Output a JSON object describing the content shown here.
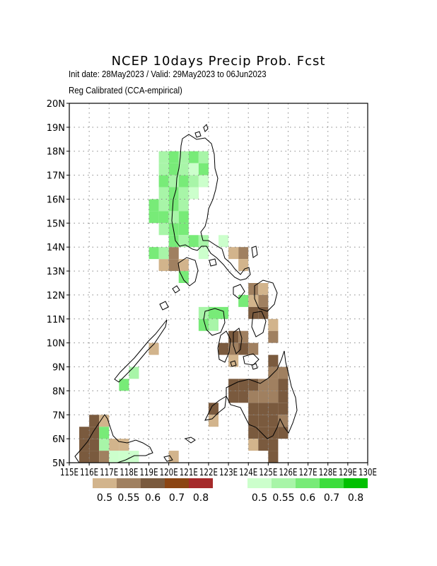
{
  "title": "NCEP 10days Precip Prob. Fcst",
  "subtitle_dates": "Init date: 28May2023 / Valid: 29May2023 to 06Jun2023",
  "subtitle_method": "Reg Calibrated (CCA-empirical)",
  "map_extent": {
    "lon": [
      115,
      130
    ],
    "lat": [
      5,
      20
    ]
  },
  "lat_labels": [
    "5N",
    "6N",
    "7N",
    "8N",
    "9N",
    "10N",
    "11N",
    "12N",
    "13N",
    "14N",
    "15N",
    "16N",
    "17N",
    "18N",
    "19N",
    "20N"
  ],
  "lon_labels": [
    "115E",
    "116E",
    "117E",
    "118E",
    "119E",
    "120E",
    "121E",
    "122E",
    "123E",
    "124E",
    "125E",
    "126E",
    "127E",
    "128E",
    "129E",
    "130E"
  ],
  "legend_dry": {
    "labels": [
      "0.5",
      "0.55",
      "0.6",
      "0.7",
      "0.8"
    ],
    "colors": [
      "#d2b48c",
      "#a08060",
      "#7a5a3e",
      "#8b4513",
      "#a52a2a"
    ]
  },
  "legend_wet": {
    "labels": [
      "0.5",
      "0.55",
      "0.6",
      "0.7",
      "0.8"
    ],
    "colors": [
      "#ccffcc",
      "#a8f5a8",
      "#78eb78",
      "#3ddd3d",
      "#00c000"
    ]
  },
  "grid_cells": {
    "wet": [
      {
        "lon": 119.75,
        "lat": 17.75,
        "p": 0.55
      },
      {
        "lon": 120.25,
        "lat": 17.75,
        "p": 0.6
      },
      {
        "lon": 120.75,
        "lat": 17.75,
        "p": 0.55
      },
      {
        "lon": 121.25,
        "lat": 17.75,
        "p": 0.6
      },
      {
        "lon": 121.75,
        "lat": 17.75,
        "p": 0.55
      },
      {
        "lon": 119.75,
        "lat": 17.25,
        "p": 0.55
      },
      {
        "lon": 120.25,
        "lat": 17.25,
        "p": 0.6
      },
      {
        "lon": 120.75,
        "lat": 17.25,
        "p": 0.55
      },
      {
        "lon": 121.25,
        "lat": 17.25,
        "p": 0.5
      },
      {
        "lon": 121.75,
        "lat": 17.25,
        "p": 0.6
      },
      {
        "lon": 119.75,
        "lat": 16.75,
        "p": 0.6
      },
      {
        "lon": 120.25,
        "lat": 16.75,
        "p": 0.55
      },
      {
        "lon": 120.75,
        "lat": 16.75,
        "p": 0.6
      },
      {
        "lon": 121.25,
        "lat": 16.75,
        "p": 0.55
      },
      {
        "lon": 121.75,
        "lat": 16.75,
        "p": 0.5
      },
      {
        "lon": 119.75,
        "lat": 16.25,
        "p": 0.55
      },
      {
        "lon": 120.25,
        "lat": 16.25,
        "p": 0.6
      },
      {
        "lon": 120.75,
        "lat": 16.25,
        "p": 0.55
      },
      {
        "lon": 121.25,
        "lat": 16.25,
        "p": 0.5
      },
      {
        "lon": 119.25,
        "lat": 15.75,
        "p": 0.6
      },
      {
        "lon": 119.75,
        "lat": 15.75,
        "p": 0.55
      },
      {
        "lon": 120.25,
        "lat": 15.75,
        "p": 0.6
      },
      {
        "lon": 120.75,
        "lat": 15.75,
        "p": 0.55
      },
      {
        "lon": 119.25,
        "lat": 15.25,
        "p": 0.6
      },
      {
        "lon": 119.75,
        "lat": 15.25,
        "p": 0.6
      },
      {
        "lon": 120.25,
        "lat": 15.25,
        "p": 0.55
      },
      {
        "lon": 120.75,
        "lat": 15.25,
        "p": 0.6
      },
      {
        "lon": 119.75,
        "lat": 14.75,
        "p": 0.55
      },
      {
        "lon": 120.25,
        "lat": 14.75,
        "p": 0.6
      },
      {
        "lon": 120.75,
        "lat": 14.75,
        "p": 0.6
      },
      {
        "lon": 120.25,
        "lat": 14.25,
        "p": 0.6
      },
      {
        "lon": 120.75,
        "lat": 14.25,
        "p": 0.55
      },
      {
        "lon": 121.25,
        "lat": 14.25,
        "p": 0.6
      },
      {
        "lon": 121.75,
        "lat": 14.25,
        "p": 0.55
      },
      {
        "lon": 122.75,
        "lat": 14.25,
        "p": 0.5
      },
      {
        "lon": 119.25,
        "lat": 13.75,
        "p": 0.6
      },
      {
        "lon": 119.75,
        "lat": 13.75,
        "p": 0.55
      },
      {
        "lon": 121.75,
        "lat": 13.75,
        "p": 0.5
      },
      {
        "lon": 120.75,
        "lat": 12.75,
        "p": 0.6
      },
      {
        "lon": 123.75,
        "lat": 11.75,
        "p": 0.6
      },
      {
        "lon": 121.75,
        "lat": 11.25,
        "p": 0.55
      },
      {
        "lon": 122.25,
        "lat": 11.25,
        "p": 0.6
      },
      {
        "lon": 122.75,
        "lat": 11.25,
        "p": 0.6
      },
      {
        "lon": 121.75,
        "lat": 10.75,
        "p": 0.6
      },
      {
        "lon": 122.25,
        "lat": 10.75,
        "p": 0.55
      },
      {
        "lon": 117.75,
        "lat": 8.25,
        "p": 0.6
      },
      {
        "lon": 118.25,
        "lat": 8.75,
        "p": 0.55
      },
      {
        "lon": 116.75,
        "lat": 6.25,
        "p": 0.6
      },
      {
        "lon": 116.75,
        "lat": 5.75,
        "p": 0.55
      },
      {
        "lon": 117.25,
        "lat": 5.25,
        "p": 0.5
      },
      {
        "lon": 117.75,
        "lat": 5.25,
        "p": 0.5
      },
      {
        "lon": 118.25,
        "lat": 5.25,
        "p": 0.5
      }
    ],
    "dry": [
      {
        "lon": 121.75,
        "lat": 16.75,
        "p": 0.5
      },
      {
        "lon": 121.25,
        "lat": 16.25,
        "p": 0.5
      },
      {
        "lon": 119.75,
        "lat": 13.25,
        "p": 0.5
      },
      {
        "lon": 120.25,
        "lat": 13.25,
        "p": 0.55
      },
      {
        "lon": 120.75,
        "lat": 13.25,
        "p": 0.5
      },
      {
        "lon": 120.25,
        "lat": 13.75,
        "p": 0.55
      },
      {
        "lon": 123.75,
        "lat": 13.75,
        "p": 0.55
      },
      {
        "lon": 123.25,
        "lat": 13.75,
        "p": 0.5
      },
      {
        "lon": 123.75,
        "lat": 13.25,
        "p": 0.5
      },
      {
        "lon": 124.25,
        "lat": 12.25,
        "p": 0.55
      },
      {
        "lon": 124.75,
        "lat": 12.25,
        "p": 0.5
      },
      {
        "lon": 124.25,
        "lat": 11.75,
        "p": 0.5
      },
      {
        "lon": 124.75,
        "lat": 11.75,
        "p": 0.55
      },
      {
        "lon": 124.25,
        "lat": 11.25,
        "p": 0.6
      },
      {
        "lon": 124.75,
        "lat": 11.25,
        "p": 0.6
      },
      {
        "lon": 125.25,
        "lat": 10.75,
        "p": 0.5
      },
      {
        "lon": 125.25,
        "lat": 10.25,
        "p": 0.55
      },
      {
        "lon": 123.25,
        "lat": 10.25,
        "p": 0.6
      },
      {
        "lon": 123.75,
        "lat": 10.25,
        "p": 0.55
      },
      {
        "lon": 122.75,
        "lat": 9.75,
        "p": 0.6
      },
      {
        "lon": 123.25,
        "lat": 9.75,
        "p": 0.55
      },
      {
        "lon": 123.75,
        "lat": 9.75,
        "p": 0.6
      },
      {
        "lon": 124.25,
        "lat": 9.75,
        "p": 0.55
      },
      {
        "lon": 123.25,
        "lat": 9.25,
        "p": 0.5
      },
      {
        "lon": 125.25,
        "lat": 9.25,
        "p": 0.6
      },
      {
        "lon": 125.25,
        "lat": 8.75,
        "p": 0.55
      },
      {
        "lon": 125.75,
        "lat": 8.75,
        "p": 0.55
      },
      {
        "lon": 123.25,
        "lat": 8.25,
        "p": 0.6
      },
      {
        "lon": 123.75,
        "lat": 8.25,
        "p": 0.6
      },
      {
        "lon": 124.25,
        "lat": 8.25,
        "p": 0.6
      },
      {
        "lon": 124.75,
        "lat": 8.25,
        "p": 0.55
      },
      {
        "lon": 125.25,
        "lat": 8.25,
        "p": 0.55
      },
      {
        "lon": 125.75,
        "lat": 8.25,
        "p": 0.6
      },
      {
        "lon": 122.25,
        "lat": 7.25,
        "p": 0.6
      },
      {
        "lon": 123.25,
        "lat": 7.75,
        "p": 0.6
      },
      {
        "lon": 123.75,
        "lat": 7.75,
        "p": 0.6
      },
      {
        "lon": 124.25,
        "lat": 7.75,
        "p": 0.55
      },
      {
        "lon": 124.75,
        "lat": 7.75,
        "p": 0.55
      },
      {
        "lon": 125.25,
        "lat": 7.75,
        "p": 0.55
      },
      {
        "lon": 125.75,
        "lat": 7.75,
        "p": 0.6
      },
      {
        "lon": 122.25,
        "lat": 6.75,
        "p": 0.5
      },
      {
        "lon": 124.25,
        "lat": 7.25,
        "p": 0.6
      },
      {
        "lon": 124.75,
        "lat": 7.25,
        "p": 0.6
      },
      {
        "lon": 125.25,
        "lat": 7.25,
        "p": 0.6
      },
      {
        "lon": 125.75,
        "lat": 7.25,
        "p": 0.6
      },
      {
        "lon": 124.25,
        "lat": 6.75,
        "p": 0.6
      },
      {
        "lon": 124.75,
        "lat": 6.75,
        "p": 0.6
      },
      {
        "lon": 125.25,
        "lat": 6.75,
        "p": 0.6
      },
      {
        "lon": 125.75,
        "lat": 6.75,
        "p": 0.55
      },
      {
        "lon": 124.25,
        "lat": 6.25,
        "p": 0.6
      },
      {
        "lon": 124.75,
        "lat": 6.25,
        "p": 0.6
      },
      {
        "lon": 125.25,
        "lat": 6.25,
        "p": 0.6
      },
      {
        "lon": 125.75,
        "lat": 6.25,
        "p": 0.6
      },
      {
        "lon": 124.25,
        "lat": 5.75,
        "p": 0.5
      },
      {
        "lon": 124.75,
        "lat": 5.75,
        "p": 0.6
      },
      {
        "lon": 125.25,
        "lat": 5.75,
        "p": 0.6
      },
      {
        "lon": 125.25,
        "lat": 5.25,
        "p": 0.6
      },
      {
        "lon": 116.25,
        "lat": 6.75,
        "p": 0.6
      },
      {
        "lon": 116.25,
        "lat": 6.25,
        "p": 0.6
      },
      {
        "lon": 115.75,
        "lat": 6.25,
        "p": 0.6
      },
      {
        "lon": 115.75,
        "lat": 5.75,
        "p": 0.6
      },
      {
        "lon": 116.25,
        "lat": 5.75,
        "p": 0.6
      },
      {
        "lon": 115.75,
        "lat": 5.25,
        "p": 0.6
      },
      {
        "lon": 116.25,
        "lat": 5.25,
        "p": 0.6
      },
      {
        "lon": 116.75,
        "lat": 5.25,
        "p": 0.55
      },
      {
        "lon": 116.75,
        "lat": 6.75,
        "p": 0.5
      },
      {
        "lon": 117.25,
        "lat": 5.75,
        "p": 0.5
      },
      {
        "lon": 117.75,
        "lat": 5.75,
        "p": 0.5
      },
      {
        "lon": 119.25,
        "lat": 9.75,
        "p": 0.5
      },
      {
        "lon": 120.25,
        "lat": 5.25,
        "p": 0.5
      }
    ]
  }
}
